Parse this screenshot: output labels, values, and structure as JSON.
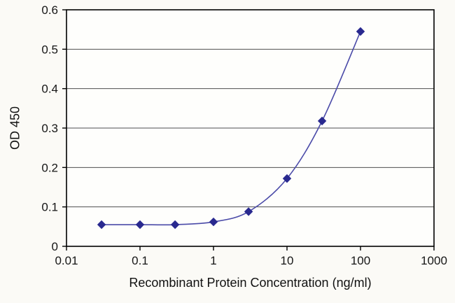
{
  "chart_data": {
    "type": "line",
    "x": [
      0.03,
      0.1,
      0.3,
      1,
      3,
      10,
      30,
      100
    ],
    "y": [
      0.055,
      0.055,
      0.055,
      0.062,
      0.088,
      0.172,
      0.318,
      0.545
    ],
    "xlabel": "Recombinant Protein Concentration (ng/ml)",
    "ylabel": "OD 450",
    "xscale": "log",
    "xlim": [
      0.01,
      1000
    ],
    "ylim": [
      0,
      0.6
    ],
    "xticks": [
      0.01,
      0.1,
      1,
      10,
      100,
      1000
    ],
    "xtick_labels": [
      "0.01",
      "0.1",
      "1",
      "10",
      "100",
      "1000"
    ],
    "yticks": [
      0,
      0.1,
      0.2,
      0.3,
      0.4,
      0.5,
      0.6
    ],
    "ytick_labels": [
      "0",
      "0.1",
      "0.2",
      "0.3",
      "0.4",
      "0.5",
      "0.6"
    ],
    "grid": "horizontal",
    "legend": "none",
    "colors": {
      "line": "#4a4aa8",
      "marker": "#29298f",
      "grid": "#4f4f4f",
      "axis": "#000000",
      "plot_background": "#fefefc",
      "figure_background": "#fbfaf6"
    }
  }
}
